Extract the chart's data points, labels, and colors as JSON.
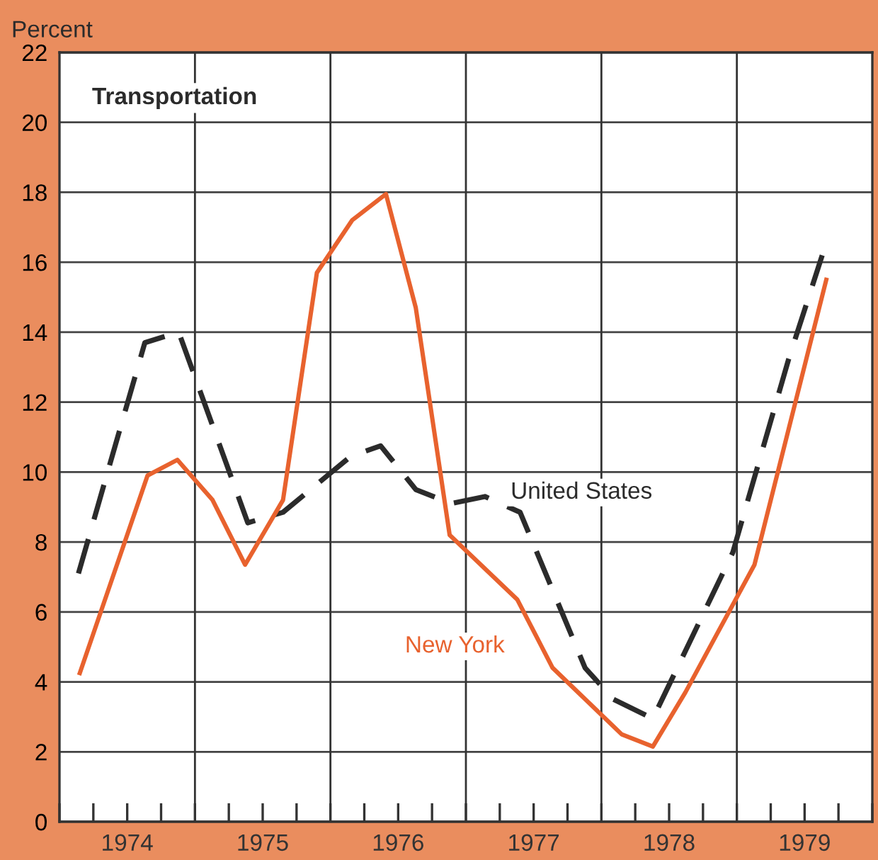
{
  "chart_data": {
    "type": "line",
    "title": "Transportation",
    "ylabel": "Percent",
    "xlim": [
      1974,
      1980
    ],
    "xticks": [
      {
        "value": 1974,
        "label": null
      },
      {
        "value": 1974.25,
        "label": null
      },
      {
        "value": 1974.5,
        "label": "1974"
      },
      {
        "value": 1974.75,
        "label": null
      },
      {
        "value": 1975,
        "label": null
      },
      {
        "value": 1975.25,
        "label": null
      },
      {
        "value": 1975.5,
        "label": "1975"
      },
      {
        "value": 1975.75,
        "label": null
      },
      {
        "value": 1976,
        "label": null
      },
      {
        "value": 1976.25,
        "label": null
      },
      {
        "value": 1976.5,
        "label": "1976"
      },
      {
        "value": 1976.75,
        "label": null
      },
      {
        "value": 1977,
        "label": null
      },
      {
        "value": 1977.25,
        "label": null
      },
      {
        "value": 1977.5,
        "label": "1977"
      },
      {
        "value": 1977.75,
        "label": null
      },
      {
        "value": 1978,
        "label": null
      },
      {
        "value": 1978.25,
        "label": null
      },
      {
        "value": 1978.5,
        "label": "1978"
      },
      {
        "value": 1978.75,
        "label": null
      },
      {
        "value": 1979,
        "label": null
      },
      {
        "value": 1979.25,
        "label": null
      },
      {
        "value": 1979.5,
        "label": "1979"
      },
      {
        "value": 1979.75,
        "label": null
      },
      {
        "value": 1980,
        "label": null
      }
    ],
    "ylim": [
      0,
      22
    ],
    "yticks": [
      0,
      2,
      4,
      6,
      8,
      10,
      12,
      14,
      16,
      18,
      20,
      22
    ],
    "grid": "y",
    "ref_lines": [
      {
        "axis": "x",
        "value": 1975,
        "label": null,
        "color": "#333333"
      },
      {
        "axis": "x",
        "value": 1976,
        "label": null,
        "color": "#333333"
      },
      {
        "axis": "x",
        "value": 1977,
        "label": null,
        "color": "#333333"
      },
      {
        "axis": "x",
        "value": 1978,
        "label": null,
        "color": "#333333"
      },
      {
        "axis": "x",
        "value": 1979,
        "label": null,
        "color": "#333333"
      }
    ],
    "series": [
      {
        "name": "United States",
        "color": "#2b2b2b",
        "line_style": "dashed",
        "x": [
          1974.14,
          1974.63,
          1974.88,
          1975.39,
          1975.65,
          1976.15,
          1976.37,
          1976.63,
          1976.89,
          1977.14,
          1977.4,
          1977.88,
          1978.09,
          1978.38,
          1978.97,
          1979.38,
          1979.63
        ],
        "values": [
          7.1,
          13.7,
          14.0,
          8.55,
          8.85,
          10.45,
          10.75,
          9.5,
          9.1,
          9.3,
          8.85,
          4.4,
          3.5,
          2.95,
          7.7,
          13.2,
          16.2
        ]
      },
      {
        "name": "New York",
        "color": "#e8622e",
        "line_style": "solid",
        "x": [
          1974.15,
          1974.65,
          1974.87,
          1975.13,
          1975.37,
          1975.65,
          1975.9,
          1976.16,
          1976.41,
          1976.63,
          1976.88,
          1977.38,
          1977.64,
          1978.15,
          1978.38,
          1978.62,
          1979.13,
          1979.66
        ],
        "values": [
          4.25,
          9.9,
          10.35,
          9.2,
          7.35,
          9.2,
          15.7,
          17.2,
          17.95,
          14.7,
          8.2,
          6.35,
          4.4,
          2.5,
          2.15,
          3.7,
          7.35,
          15.5
        ]
      }
    ]
  }
}
